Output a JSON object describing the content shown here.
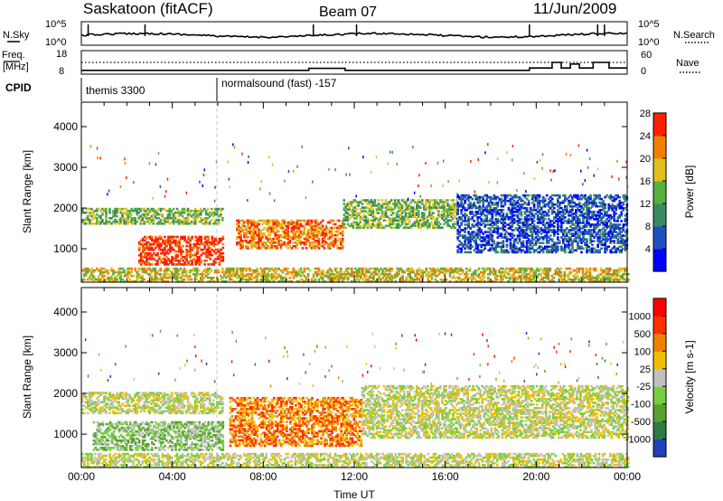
{
  "header": {
    "title": "Saskatoon (fitACF)",
    "beam": "Beam 07",
    "date": "11/Jun/2009"
  },
  "noise_panel": {
    "left_label": "N.Sky",
    "right_label": "N.Search",
    "left_ticks": [
      "10^5",
      "10^0"
    ],
    "right_ticks": [
      "10^5",
      "10^0"
    ]
  },
  "freq_panel": {
    "left_label_top": "Freq.",
    "left_label_bottom": "[MHz]",
    "right_label": "Nave",
    "left_ticks": [
      "18",
      "8"
    ],
    "right_ticks": [
      "60",
      "0"
    ],
    "nave_steps": [
      {
        "t": 0,
        "v": 6
      },
      {
        "t": 10,
        "v": 6
      },
      {
        "t": 10,
        "v": 12
      },
      {
        "t": 11.6,
        "v": 12
      },
      {
        "t": 11.6,
        "v": 6
      },
      {
        "t": 19.7,
        "v": 6
      },
      {
        "t": 19.7,
        "v": 13
      },
      {
        "t": 20.7,
        "v": 13
      },
      {
        "t": 20.7,
        "v": 30
      },
      {
        "t": 21.1,
        "v": 30
      },
      {
        "t": 21.1,
        "v": 13
      },
      {
        "t": 21.5,
        "v": 13
      },
      {
        "t": 21.5,
        "v": 25
      },
      {
        "t": 21.9,
        "v": 25
      },
      {
        "t": 21.9,
        "v": 13
      },
      {
        "t": 22.5,
        "v": 13
      },
      {
        "t": 22.5,
        "v": 30
      },
      {
        "t": 23.2,
        "v": 30
      },
      {
        "t": 23.2,
        "v": 13
      },
      {
        "t": 24,
        "v": 13
      }
    ]
  },
  "cpid_panel": {
    "label": "CPID",
    "modes": [
      {
        "start": 0,
        "text": "themis 3300"
      },
      {
        "start": 6,
        "text": "normalsound (fast) -157"
      }
    ]
  },
  "chart_data": [
    {
      "type": "heatmap",
      "name": "power",
      "ylabel": "Slant Range [km]",
      "xlabel": "",
      "xlim": [
        0,
        24
      ],
      "ylim": [
        180,
        4600
      ],
      "yticks": [
        "1000",
        "2000",
        "3000",
        "4000"
      ],
      "colorbar_label": "Power [dB]",
      "colorbar_ticks": [
        "4",
        "8",
        "12",
        "16",
        "20",
        "24",
        "28"
      ],
      "colorbar_colors": [
        "#0000ff",
        "#2050c0",
        "#3a8a60",
        "#55b040",
        "#e0c020",
        "#f08000",
        "#ff2000"
      ],
      "regions": [
        {
          "t0": 0,
          "t1": 6.2,
          "r0": 1600,
          "r1": 2000,
          "level": 3
        },
        {
          "t0": 2.5,
          "t1": 6.2,
          "r0": 600,
          "r1": 1300,
          "level": 6
        },
        {
          "t0": 6.8,
          "t1": 11.5,
          "r0": 1000,
          "r1": 1700,
          "level": 5
        },
        {
          "t0": 11.5,
          "t1": 16.5,
          "r0": 1500,
          "r1": 2200,
          "level": 3
        },
        {
          "t0": 16.5,
          "t1": 24,
          "r0": 900,
          "r1": 2300,
          "level": 1
        },
        {
          "t0": 0,
          "t1": 24,
          "r0": 180,
          "r1": 500,
          "level": 4
        }
      ]
    },
    {
      "type": "heatmap",
      "name": "velocity",
      "ylabel": "Slant Range [km]",
      "xlabel": "Time UT",
      "xlim": [
        0,
        24
      ],
      "ylim": [
        180,
        4600
      ],
      "xticks": [
        "00:00",
        "04:00",
        "08:00",
        "12:00",
        "16:00",
        "20:00",
        "00:00"
      ],
      "yticks": [
        "1000",
        "2000",
        "3000",
        "4000"
      ],
      "colorbar_label": "Velocity [m s-1]",
      "colorbar_ticks": [
        "1000",
        "500",
        "100",
        "25",
        "-25",
        "-100",
        "-500",
        "-1000"
      ],
      "colorbar_colors": [
        "#2040c0",
        "#2e7a40",
        "#5aa030",
        "#78d040",
        "#c0c0c0",
        "#f0c000",
        "#f08000",
        "#ff3000",
        "#ff0000"
      ],
      "regions": [
        {
          "t0": 0,
          "t1": 6.2,
          "r0": 1500,
          "r1": 2000,
          "level": 4
        },
        {
          "t0": 0.5,
          "t1": 6.2,
          "r0": 600,
          "r1": 1300,
          "level": 3
        },
        {
          "t0": 6.5,
          "t1": 12.3,
          "r0": 700,
          "r1": 1900,
          "level": 6
        },
        {
          "t0": 12.3,
          "t1": 24,
          "r0": 900,
          "r1": 2200,
          "level": 4
        },
        {
          "t0": 0,
          "t1": 24,
          "r0": 180,
          "r1": 500,
          "level": 4
        }
      ]
    }
  ]
}
